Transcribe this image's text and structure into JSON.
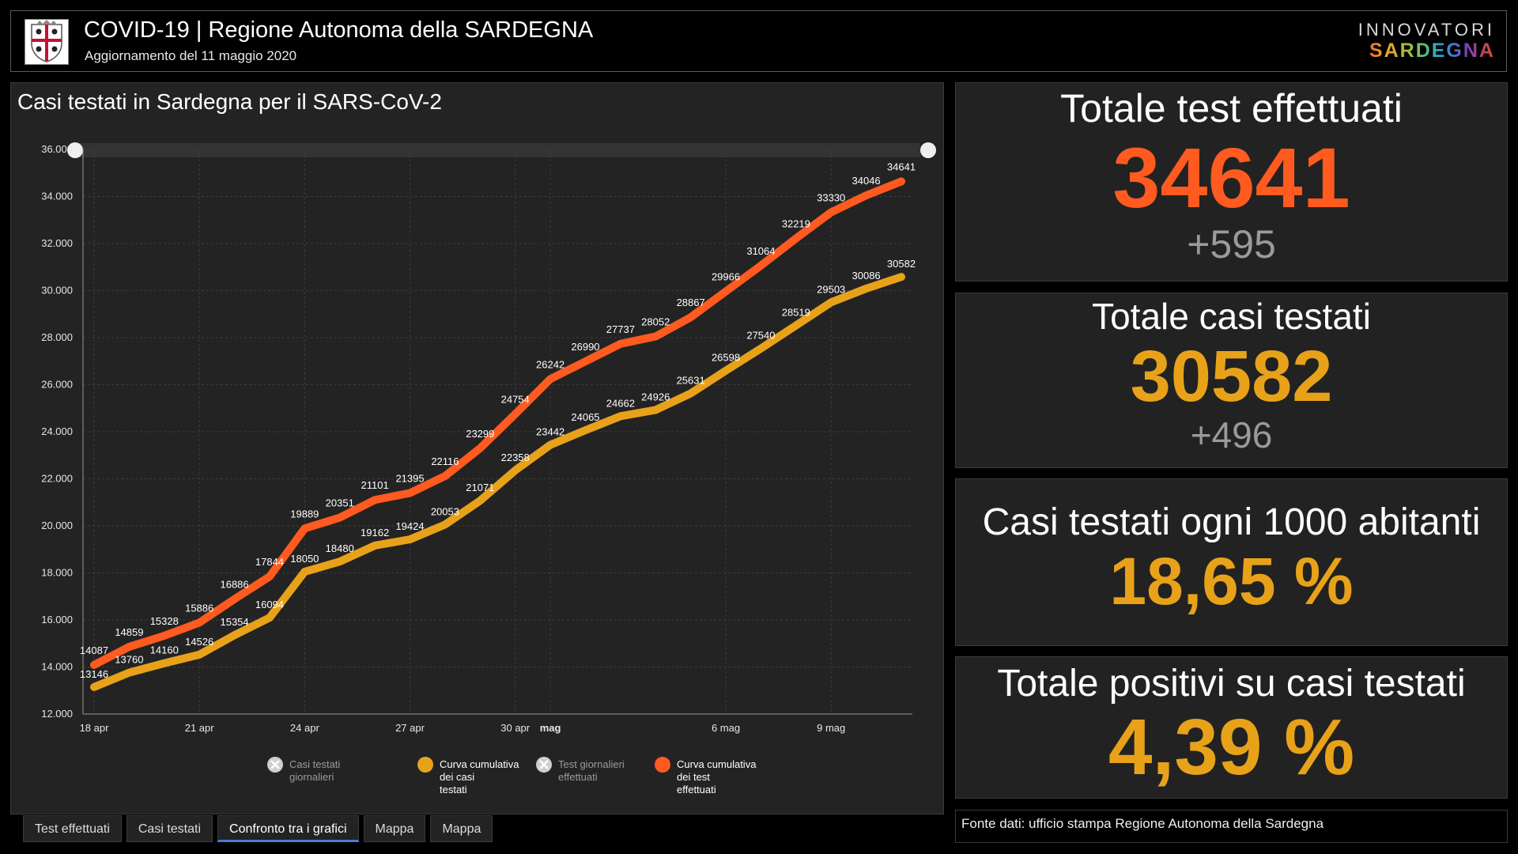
{
  "header": {
    "title": "COVID-19 | Regione Autonoma della SARDEGNA",
    "subtitle": "Aggiornamento del 11 maggio 2020",
    "brand_top": "INNOVATORI",
    "brand_bottom": "SARDEGNA"
  },
  "chart_title": "Casi testati in Sardegna per il SARS-CoV-2",
  "colors": {
    "tests": "#ff5a1f",
    "cases": "#e8a21a",
    "panel": "#232323",
    "grid": "#3c3c3c"
  },
  "chart_data": {
    "type": "line",
    "title": "Casi testati in Sardegna per il SARS-CoV-2",
    "x": [
      "18 apr",
      "19 apr",
      "20 apr",
      "21 apr",
      "22 apr",
      "23 apr",
      "24 apr",
      "25 apr",
      "26 apr",
      "27 apr",
      "28 apr",
      "29 apr",
      "30 apr",
      "1 mag",
      "2 mag",
      "3 mag",
      "4 mag",
      "5 mag",
      "6 mag",
      "7 mag",
      "8 mag",
      "9 mag",
      "10 mag",
      "11 mag"
    ],
    "x_ticks": [
      "18 apr",
      "21 apr",
      "24 apr",
      "27 apr",
      "30 apr",
      "mag",
      "6 mag",
      "9 mag"
    ],
    "ylim": [
      12000,
      36000
    ],
    "y_ticks": [
      "12.000",
      "14.000",
      "16.000",
      "18.000",
      "20.000",
      "22.000",
      "24.000",
      "26.000",
      "28.000",
      "30.000",
      "32.000",
      "34.000",
      "36.000"
    ],
    "grid": true,
    "legend_position": "bottom",
    "series": [
      {
        "name": "Curva cumulativa dei test effettuati",
        "color": "#ff5a1f",
        "values": [
          14087,
          14859,
          15328,
          15886,
          16886,
          17844,
          19889,
          20351,
          21101,
          21395,
          22116,
          23299,
          24754,
          26242,
          26990,
          27737,
          28052,
          28867,
          29966,
          31064,
          32219,
          33330,
          34046,
          34641
        ]
      },
      {
        "name": "Curva cumulativa dei casi testati",
        "color": "#e8a21a",
        "values": [
          13146,
          13760,
          14160,
          14526,
          15354,
          16094,
          18050,
          18480,
          19162,
          19424,
          20053,
          21071,
          22358,
          23442,
          24065,
          24662,
          24926,
          25631,
          26598,
          27540,
          28519,
          29503,
          30086,
          30582
        ]
      }
    ],
    "legend": [
      {
        "label": "Casi testati giornalieri",
        "active": false,
        "color": "#cfcfcf"
      },
      {
        "label": "Curva cumulativa dei casi testati",
        "active": true,
        "color": "#e8a21a"
      },
      {
        "label": "Test giornalieri effettuati",
        "active": false,
        "color": "#cfcfcf"
      },
      {
        "label": "Curva cumulativa dei test effettuati",
        "active": true,
        "color": "#ff5a1f"
      }
    ]
  },
  "tabs": [
    "Test effettuati",
    "Casi testati",
    "Confronto tra i grafici",
    "Mappa",
    "Mappa"
  ],
  "cards": {
    "total_tests": {
      "label": "Totale test effettuati",
      "value": "34641",
      "delta": "+595",
      "color": "#ff5a1f"
    },
    "total_cases": {
      "label": "Totale casi testati",
      "value": "30582",
      "delta": "+496",
      "color": "#e8a21a"
    },
    "per_1000": {
      "label": "Casi testati ogni 1000 abitanti",
      "value": "18,65 %",
      "color": "#e8a21a"
    },
    "positives": {
      "label": "Totale positivi su casi testati",
      "value": "4,39 %",
      "color": "#e8a21a"
    }
  },
  "source": "Fonte dati: ufficio stampa Regione Autonoma della Sardegna"
}
